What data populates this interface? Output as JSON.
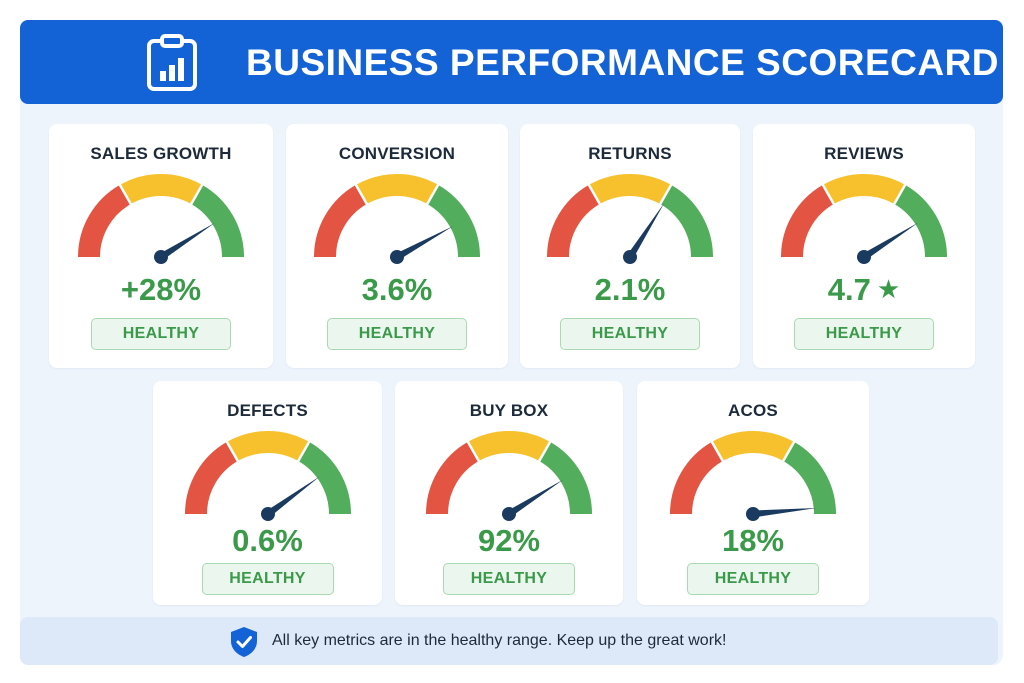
{
  "header": {
    "title": "BUSINESS PERFORMANCE SCORECARD",
    "icon": "clipboard-chart-icon"
  },
  "colors": {
    "brand": "#1463d6",
    "gauge_red": "#e35442",
    "gauge_yellow": "#f6c12d",
    "gauge_green": "#52ad5c",
    "needle": "#1b3a5f",
    "healthy_text": "#3a9a4a"
  },
  "metrics": [
    {
      "label": "SALES GROWTH",
      "value": "+28%",
      "status": "HEALTHY",
      "gauge_level": 0.82
    },
    {
      "label": "CONVERSION",
      "value": "3.6%",
      "status": "HEALTHY",
      "gauge_level": 0.84
    },
    {
      "label": "RETURNS",
      "value": "2.1%",
      "status": "HEALTHY",
      "gauge_level": 0.68
    },
    {
      "label": "REVIEWS",
      "value": "4.7",
      "value_icon": "star-icon",
      "status": "HEALTHY",
      "gauge_level": 0.82
    },
    {
      "label": "DEFECTS",
      "value": "0.6%",
      "status": "HEALTHY",
      "gauge_level": 0.8
    },
    {
      "label": "BUY BOX",
      "value": "92%",
      "status": "HEALTHY",
      "gauge_level": 0.82
    },
    {
      "label": "ACOS",
      "value": "18%",
      "status": "HEALTHY",
      "gauge_level": 0.97
    }
  ],
  "footer": {
    "icon": "shield-check-icon",
    "message": "All key metrics are in the healthy range. Keep up the great work!"
  }
}
